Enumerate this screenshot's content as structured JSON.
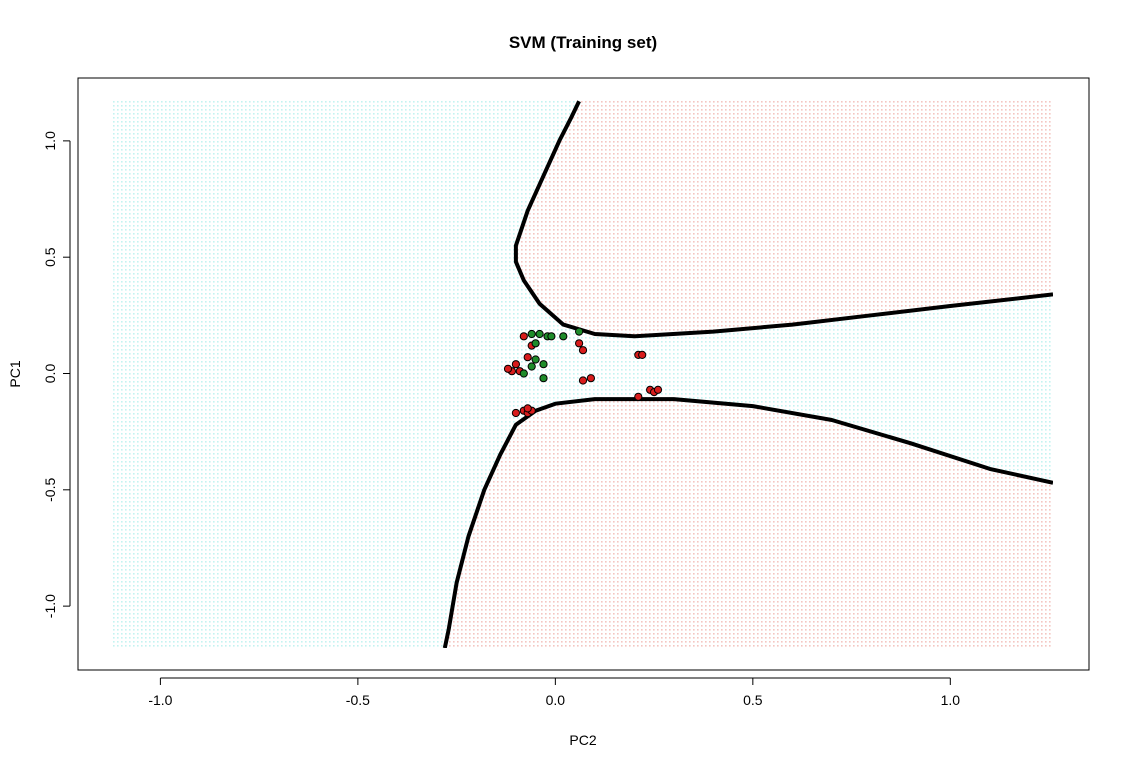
{
  "chart_data": {
    "type": "scatter",
    "title": "SVM (Training set)",
    "xlabel": "PC2",
    "ylabel": "PC1",
    "xlim": [
      -1.12,
      1.26
    ],
    "ylim": [
      -1.18,
      1.18
    ],
    "x_ticks": [
      {
        "value": -1.0,
        "label": "-1.0"
      },
      {
        "value": -0.5,
        "label": "-0.5"
      },
      {
        "value": 0.0,
        "label": "0.0"
      },
      {
        "value": 0.5,
        "label": "0.5"
      },
      {
        "value": 1.0,
        "label": "1.0"
      }
    ],
    "y_ticks": [
      {
        "value": -1.0,
        "label": "-1.0"
      },
      {
        "value": -0.5,
        "label": "-0.5"
      },
      {
        "value": 0.0,
        "label": "0.0"
      },
      {
        "value": 0.5,
        "label": "0.5"
      },
      {
        "value": 1.0,
        "label": "1.0"
      }
    ],
    "grid": false,
    "colors": {
      "region_class_0": "#f4c6c1",
      "region_class_1": "#c4f3f1",
      "points_class_0": "#d81c1c",
      "points_class_1": "#1e8c2a",
      "boundary": "#000000"
    },
    "decision_boundary": {
      "upper_curve": [
        [
          0.06,
          1.17
        ],
        [
          0.04,
          1.1
        ],
        [
          0.01,
          1.0
        ],
        [
          -0.03,
          0.85
        ],
        [
          -0.07,
          0.7
        ],
        [
          -0.1,
          0.55
        ],
        [
          -0.1,
          0.48
        ],
        [
          -0.08,
          0.4
        ],
        [
          -0.04,
          0.3
        ],
        [
          0.02,
          0.21
        ],
        [
          0.1,
          0.17
        ],
        [
          0.2,
          0.16
        ],
        [
          0.4,
          0.18
        ],
        [
          0.6,
          0.21
        ],
        [
          0.8,
          0.25
        ],
        [
          1.0,
          0.29
        ],
        [
          1.26,
          0.34
        ]
      ],
      "lower_curve": [
        [
          -0.28,
          -1.18
        ],
        [
          -0.27,
          -1.1
        ],
        [
          -0.25,
          -0.9
        ],
        [
          -0.22,
          -0.7
        ],
        [
          -0.18,
          -0.5
        ],
        [
          -0.14,
          -0.35
        ],
        [
          -0.1,
          -0.22
        ],
        [
          -0.05,
          -0.16
        ],
        [
          0.0,
          -0.13
        ],
        [
          0.1,
          -0.11
        ],
        [
          0.3,
          -0.11
        ],
        [
          0.5,
          -0.14
        ],
        [
          0.7,
          -0.2
        ],
        [
          0.9,
          -0.3
        ],
        [
          1.1,
          -0.41
        ],
        [
          1.26,
          -0.47
        ]
      ]
    },
    "series": [
      {
        "class": 0,
        "points": [
          [
            -0.08,
            0.16
          ],
          [
            -0.07,
            0.07
          ],
          [
            -0.06,
            0.12
          ],
          [
            -0.11,
            0.01
          ],
          [
            -0.1,
            0.04
          ],
          [
            -0.12,
            0.02
          ],
          [
            -0.09,
            0.01
          ],
          [
            -0.1,
            -0.17
          ],
          [
            -0.08,
            -0.16
          ],
          [
            -0.07,
            -0.17
          ],
          [
            -0.06,
            -0.16
          ],
          [
            0.06,
            0.13
          ],
          [
            0.07,
            0.1
          ],
          [
            0.07,
            -0.03
          ],
          [
            0.09,
            -0.02
          ],
          [
            0.21,
            0.08
          ],
          [
            0.22,
            0.08
          ],
          [
            0.21,
            -0.1
          ],
          [
            0.24,
            -0.07
          ],
          [
            0.25,
            -0.08
          ],
          [
            0.26,
            -0.07
          ],
          [
            -0.07,
            -0.15
          ]
        ]
      },
      {
        "class": 1,
        "points": [
          [
            -0.06,
            0.17
          ],
          [
            -0.05,
            0.13
          ],
          [
            -0.04,
            0.17
          ],
          [
            -0.02,
            0.16
          ],
          [
            -0.01,
            0.16
          ],
          [
            0.02,
            0.16
          ],
          [
            -0.08,
            0.0
          ],
          [
            -0.06,
            0.03
          ],
          [
            -0.05,
            0.06
          ],
          [
            -0.03,
            0.04
          ],
          [
            -0.03,
            -0.02
          ],
          [
            0.06,
            0.18
          ]
        ]
      }
    ]
  }
}
